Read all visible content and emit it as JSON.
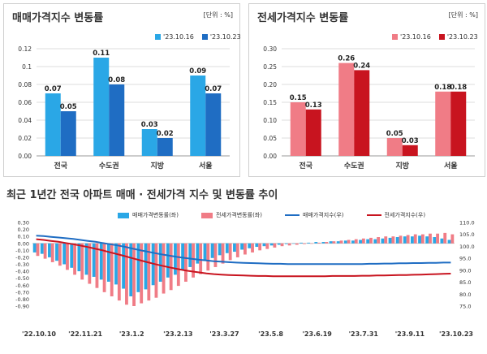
{
  "charts": {
    "sale": {
      "title": "매매가격지수 변동률",
      "unit": "[단위 : %]",
      "legend": [
        "'23.10.16",
        "'23.10.23"
      ],
      "colors": [
        "#2aa7e6",
        "#1f6dc3"
      ]
    },
    "jeonse": {
      "title": "전세가격지수 변동률",
      "unit": "[단위 : %]",
      "legend": [
        "'23.10.16",
        "'23.10.23"
      ],
      "colors": [
        "#f07c86",
        "#c8141f"
      ]
    },
    "trend": {
      "title": "최근 1년간 전국 아파트 매매 · 전세가격 지수 및 변동률 추이",
      "legend": [
        "매매가격변동률(좌)",
        "전세가격변동률(좌)",
        "매매가격지수(우)",
        "전세가격지수(우)"
      ],
      "colors": [
        "#2aa7e6",
        "#f07c86",
        "#1f6dc3",
        "#c8141f"
      ]
    }
  },
  "chart_data": [
    {
      "type": "bar",
      "title": "매매가격지수 변동률",
      "categories": [
        "전국",
        "수도권",
        "지방",
        "서울"
      ],
      "series": [
        {
          "name": "'23.10.16",
          "values": [
            0.07,
            0.11,
            0.03,
            0.09
          ]
        },
        {
          "name": "'23.10.23",
          "values": [
            0.05,
            0.08,
            0.02,
            0.07
          ]
        }
      ],
      "ylim": [
        0,
        0.12
      ],
      "yticks": [
        "0.12",
        "0.1",
        "0.08",
        "0.06",
        "0.04",
        "0.02",
        "0.00"
      ],
      "grid": true,
      "legend_position": "top-right"
    },
    {
      "type": "bar",
      "title": "전세가격지수 변동률",
      "categories": [
        "전국",
        "수도권",
        "지방",
        "서울"
      ],
      "series": [
        {
          "name": "'23.10.16",
          "values": [
            0.15,
            0.26,
            0.05,
            0.18
          ]
        },
        {
          "name": "'23.10.23",
          "values": [
            0.13,
            0.24,
            0.03,
            0.18
          ]
        }
      ],
      "ylim": [
        0,
        0.3
      ],
      "yticks": [
        "0.30",
        "0.25",
        "0.20",
        "0.15",
        "0.10",
        "0.05",
        "0.00"
      ],
      "grid": true,
      "legend_position": "top-right"
    },
    {
      "type": "bar",
      "title": "최근 1년간 전국 아파트 매매 · 전세가격 지수 및 변동률 추이",
      "x_ticks": [
        "'22.10.10",
        "'22.11.21",
        "'23.1.2",
        "'23.2.13",
        "'23.3.27",
        "'23.5.8",
        "'23.6.19",
        "'23.7.31",
        "'23.9.11",
        "'23.10.23"
      ],
      "ylim_left": [
        -0.9,
        0.3
      ],
      "ylim_right": [
        75,
        110
      ],
      "yticks_left": [
        "0.30",
        "0.20",
        "0.10",
        "0.00",
        "-0.10",
        "-0.20",
        "-0.30",
        "-0.40",
        "-0.50",
        "-0.60",
        "-0.70",
        "-0.80",
        "-0.90"
      ],
      "yticks_right": [
        "110.0",
        "105.0",
        "100.0",
        "95.0",
        "90.0",
        "85.0",
        "80.0",
        "75.0"
      ],
      "legend_position": "top",
      "series": [
        {
          "name": "매매가격변동률(좌)",
          "type": "bar",
          "axis": "left",
          "values": [
            -0.13,
            -0.15,
            -0.2,
            -0.25,
            -0.3,
            -0.35,
            -0.4,
            -0.45,
            -0.48,
            -0.52,
            -0.55,
            -0.59,
            -0.65,
            -0.76,
            -0.7,
            -0.66,
            -0.6,
            -0.55,
            -0.49,
            -0.45,
            -0.38,
            -0.34,
            -0.29,
            -0.25,
            -0.21,
            -0.17,
            -0.14,
            -0.12,
            -0.09,
            -0.07,
            -0.05,
            -0.04,
            -0.03,
            -0.02,
            -0.01,
            0.0,
            0.01,
            0.01,
            0.02,
            0.02,
            0.03,
            0.03,
            0.04,
            0.04,
            0.05,
            0.06,
            0.06,
            0.07,
            0.08,
            0.09,
            0.1,
            0.1,
            0.11,
            0.1,
            0.09,
            0.07,
            0.05
          ]
        },
        {
          "name": "전세가격변동률(좌)",
          "type": "bar",
          "axis": "left",
          "values": [
            -0.18,
            -0.22,
            -0.27,
            -0.32,
            -0.38,
            -0.45,
            -0.52,
            -0.58,
            -0.64,
            -0.7,
            -0.76,
            -0.82,
            -0.88,
            -0.9,
            -0.86,
            -0.82,
            -0.78,
            -0.72,
            -0.67,
            -0.61,
            -0.55,
            -0.49,
            -0.44,
            -0.39,
            -0.34,
            -0.29,
            -0.24,
            -0.2,
            -0.16,
            -0.13,
            -0.1,
            -0.08,
            -0.06,
            -0.04,
            -0.03,
            -0.02,
            -0.01,
            0.0,
            0.01,
            0.02,
            0.03,
            0.04,
            0.05,
            0.06,
            0.07,
            0.08,
            0.09,
            0.1,
            0.1,
            0.11,
            0.12,
            0.13,
            0.13,
            0.14,
            0.14,
            0.15,
            0.13
          ]
        },
        {
          "name": "매매가격지수(우)",
          "type": "line",
          "axis": "right",
          "values": [
            104.5,
            104.3,
            104.0,
            103.7,
            103.4,
            103.1,
            102.7,
            102.3,
            101.9,
            101.4,
            100.9,
            100.4,
            99.8,
            99.1,
            98.4,
            97.8,
            97.2,
            96.6,
            96.1,
            95.6,
            95.2,
            94.8,
            94.4,
            94.1,
            93.8,
            93.6,
            93.4,
            93.2,
            93.1,
            93.0,
            92.9,
            92.8,
            92.7,
            92.7,
            92.6,
            92.6,
            92.6,
            92.6,
            92.6,
            92.6,
            92.6,
            92.6,
            92.6,
            92.6,
            92.6,
            92.7,
            92.7,
            92.8,
            92.8,
            92.9,
            92.9,
            93.0,
            93.0,
            93.1,
            93.1,
            93.2,
            93.2
          ]
        },
        {
          "name": "전세가격지수(우)",
          "type": "line",
          "axis": "right",
          "values": [
            103.0,
            102.7,
            102.3,
            101.9,
            101.4,
            100.9,
            100.3,
            99.7,
            99.0,
            98.3,
            97.5,
            96.7,
            95.9,
            95.0,
            94.2,
            93.4,
            92.6,
            91.9,
            91.2,
            90.6,
            90.0,
            89.5,
            89.1,
            88.7,
            88.4,
            88.2,
            88.0,
            87.9,
            87.8,
            87.7,
            87.6,
            87.6,
            87.5,
            87.5,
            87.5,
            87.5,
            87.5,
            87.5,
            87.5,
            87.5,
            87.6,
            87.6,
            87.6,
            87.6,
            87.7,
            87.7,
            87.8,
            87.8,
            87.9,
            88.0,
            88.0,
            88.1,
            88.2,
            88.3,
            88.4,
            88.5,
            88.6
          ]
        }
      ]
    }
  ]
}
